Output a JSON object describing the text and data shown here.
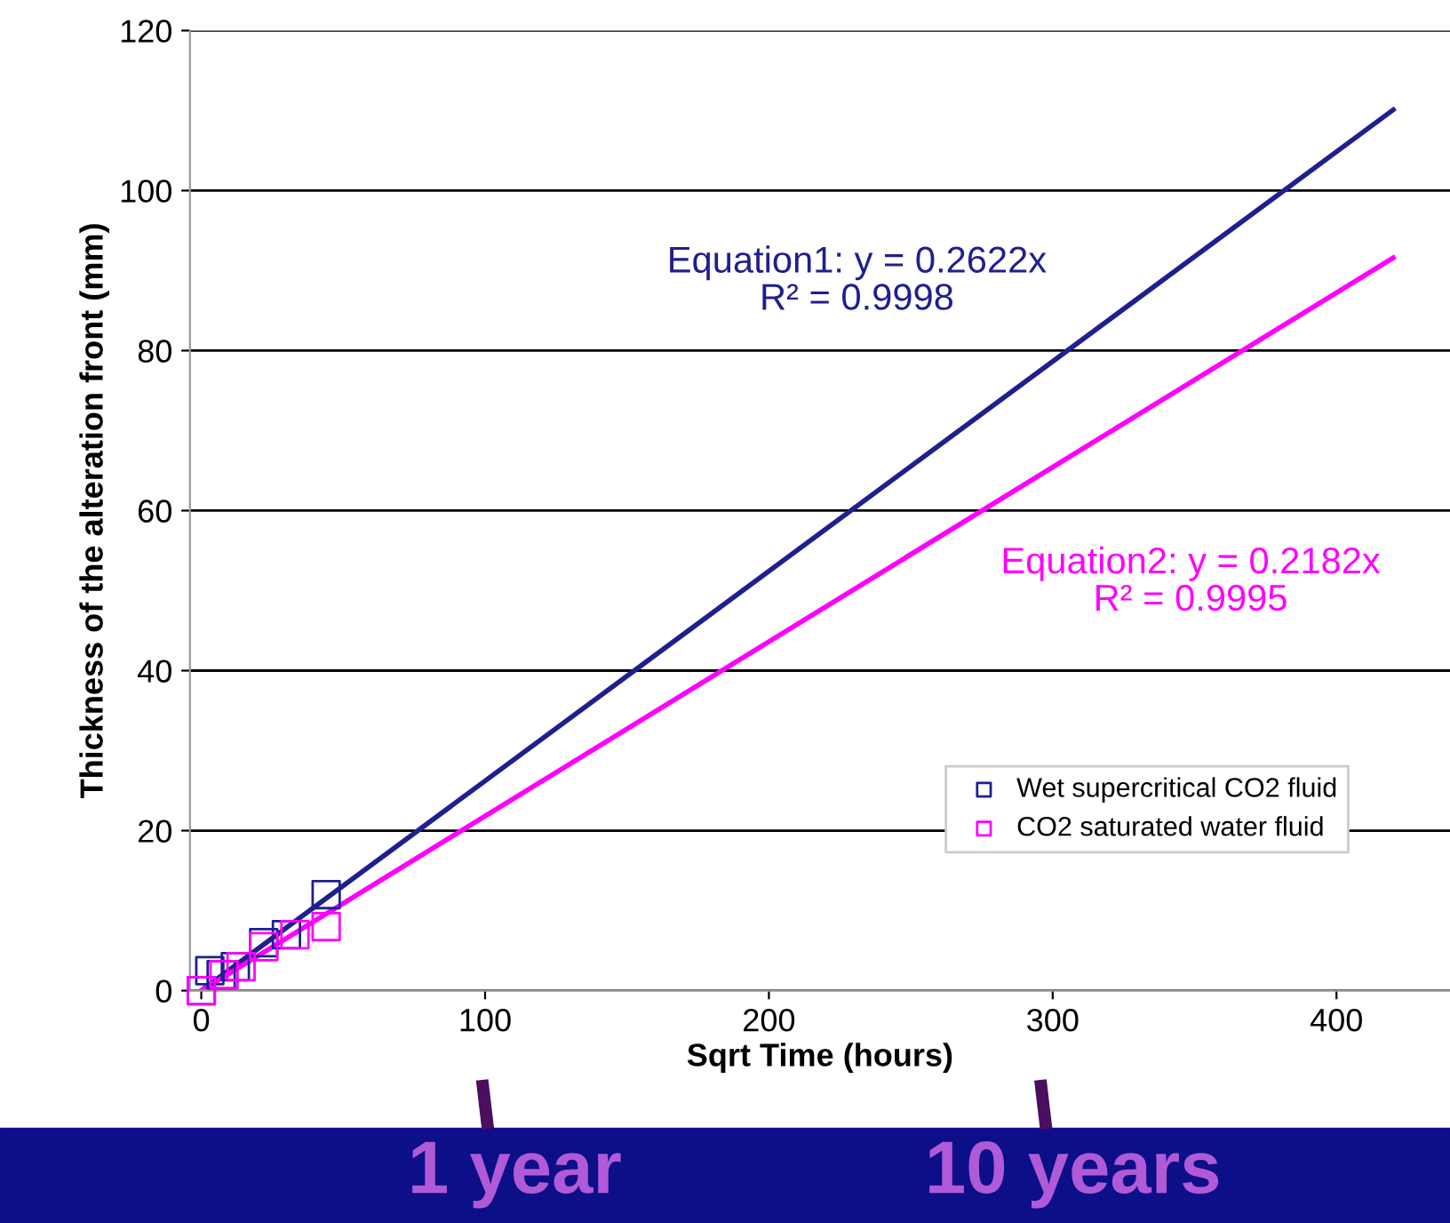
{
  "chart_data": {
    "type": "scatter",
    "xlabel": "Sqrt Time (hours)",
    "ylabel": "Thickness of the alteration front (mm)",
    "xlim": [
      -4,
      440
    ],
    "ylim": [
      0,
      120
    ],
    "xticks": [
      0,
      100,
      200,
      300,
      400
    ],
    "yticks": [
      0,
      20,
      40,
      60,
      80,
      100,
      120
    ],
    "grid": "y",
    "legend": "lower right",
    "series": [
      {
        "name": "Wet supercritical CO2 fluid",
        "color": "#1f1f8f",
        "marker": "square",
        "x": [
          0,
          3,
          7,
          12,
          22,
          30,
          44
        ],
        "values": [
          0,
          2.5,
          2,
          3,
          6,
          7,
          12
        ]
      },
      {
        "name": "CO2 saturated water fluid",
        "color": "#ff00ff",
        "marker": "square",
        "x": [
          0,
          8,
          14,
          22,
          33,
          44
        ],
        "values": [
          0,
          2,
          3,
          5.5,
          7,
          8
        ]
      },
      {
        "type": "line",
        "name": "Equation1: y = 0.2622x\nR² = 0.9998",
        "color": "#1f1f8f",
        "x": [
          0,
          420
        ],
        "values": [
          0,
          110.1
        ]
      },
      {
        "type": "line",
        "name": "Equation2: y = 0.2182x\nR² = 0.9995",
        "color": "#ff00ff",
        "x": [
          0,
          420
        ],
        "values": [
          0,
          91.6
        ]
      }
    ],
    "annotations": [
      "1 year",
      "10 years"
    ]
  }
}
